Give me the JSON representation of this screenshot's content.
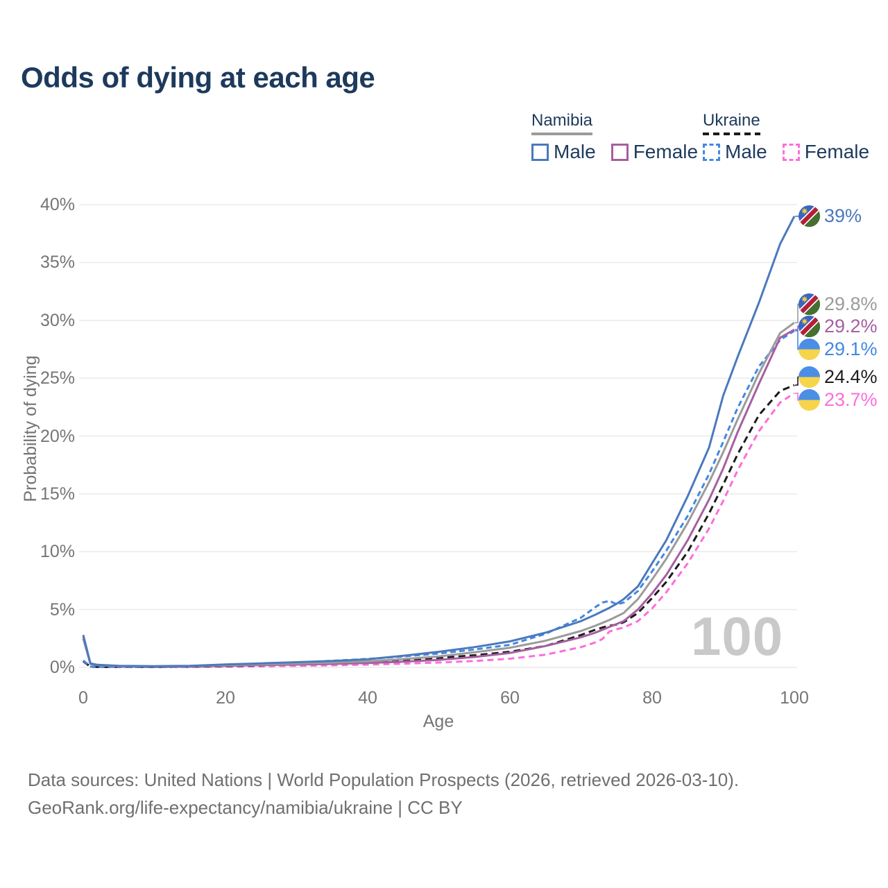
{
  "title": "Odds of dying at each age",
  "legend": {
    "groups": [
      {
        "name": "Namibia",
        "line_style": "solid",
        "line_color": "#9b9b9b",
        "items": [
          {
            "label": "Male",
            "color": "#4b79bc",
            "dashed": false
          },
          {
            "label": "Female",
            "color": "#a55fa0",
            "dashed": false
          }
        ]
      },
      {
        "name": "Ukraine",
        "line_style": "dashed",
        "line_color": "#1b1b1b",
        "items": [
          {
            "label": "Male",
            "color": "#4387e3",
            "dashed": true
          },
          {
            "label": "Female",
            "color": "#fc6eda",
            "dashed": true
          }
        ]
      }
    ]
  },
  "footer": {
    "line1": "Data sources: United Nations | World Population Prospects (2026, retrieved 2026-03-10).",
    "line2": "GeoRank.org/life-expectancy/namibia/ukraine | CC BY"
  },
  "chart_data": {
    "type": "line",
    "title": "Odds of dying at each age",
    "xlabel": "Age",
    "ylabel": "Probability of dying",
    "xlim": [
      0,
      100
    ],
    "ylim": [
      0,
      40
    ],
    "xticks": [
      0,
      20,
      40,
      60,
      80,
      100
    ],
    "ytick_values": [
      0,
      5,
      10,
      15,
      20,
      25,
      30,
      35,
      40
    ],
    "ytick_labels": [
      "0%",
      "5%",
      "10%",
      "15%",
      "20%",
      "25%",
      "30%",
      "35%",
      "40%"
    ],
    "grid": "horizontal",
    "grid_color": "#eaeaea",
    "legend_position": "top-right",
    "age_cursor": "100",
    "ages": [
      0,
      1,
      2,
      5,
      10,
      15,
      20,
      25,
      30,
      35,
      40,
      45,
      50,
      55,
      60,
      65,
      70,
      72,
      73,
      74,
      75,
      76,
      78,
      80,
      82,
      85,
      88,
      90,
      92,
      95,
      98,
      100
    ],
    "series": [
      {
        "id": "namibia-male",
        "name": "Namibia male",
        "country": "Namibia",
        "sex": "Male",
        "color": "#4b79bc",
        "dash": null,
        "flag": "namibia",
        "end_label": "39%",
        "label_color": "#4b79bc",
        "label_pct": 39.0,
        "y": [
          2.8,
          0.35,
          0.22,
          0.13,
          0.1,
          0.14,
          0.25,
          0.35,
          0.45,
          0.55,
          0.7,
          1.0,
          1.35,
          1.75,
          2.25,
          3.0,
          4.0,
          4.55,
          4.85,
          5.15,
          5.5,
          5.9,
          7.0,
          9.0,
          11.0,
          14.8,
          19.0,
          23.5,
          26.8,
          31.5,
          36.6,
          39.0
        ]
      },
      {
        "id": "namibia-all",
        "name": "Namibia both sexes",
        "country": "Namibia",
        "sex": "Both",
        "color": "#9b9b9b",
        "dash": null,
        "flag": "namibia",
        "end_label": "29.8%",
        "label_color": "#9b9b9b",
        "label_pct": 31.4,
        "y": [
          2.65,
          0.32,
          0.2,
          0.11,
          0.09,
          0.12,
          0.19,
          0.26,
          0.33,
          0.41,
          0.52,
          0.72,
          0.95,
          1.3,
          1.7,
          2.3,
          3.15,
          3.6,
          3.85,
          4.1,
          4.4,
          4.7,
          5.9,
          7.6,
          9.4,
          12.5,
          16.0,
          18.6,
          21.4,
          25.4,
          28.9,
          29.8
        ]
      },
      {
        "id": "namibia-female",
        "name": "Namibia female",
        "country": "Namibia",
        "sex": "Female",
        "color": "#a55fa0",
        "dash": null,
        "flag": "namibia",
        "end_label": "29.2%",
        "label_color": "#a55fa0",
        "label_pct": 29.5,
        "y": [
          2.5,
          0.3,
          0.18,
          0.1,
          0.08,
          0.1,
          0.14,
          0.19,
          0.24,
          0.3,
          0.38,
          0.5,
          0.65,
          0.9,
          1.25,
          1.85,
          2.6,
          3.0,
          3.25,
          3.5,
          3.75,
          4.0,
          5.0,
          6.4,
          8.0,
          11.0,
          14.5,
          17.2,
          20.3,
          24.5,
          28.5,
          29.2
        ]
      },
      {
        "id": "ukraine-male",
        "name": "Ukraine male",
        "country": "Ukraine",
        "sex": "Male",
        "color": "#4387e3",
        "dash": "8 5",
        "flag": "ukraine",
        "end_label": "29.1%",
        "label_color": "#4387e3",
        "label_pct": 27.5,
        "y": [
          0.6,
          0.07,
          0.05,
          0.04,
          0.04,
          0.08,
          0.16,
          0.28,
          0.42,
          0.57,
          0.73,
          0.95,
          1.2,
          1.55,
          1.95,
          2.9,
          4.3,
          5.2,
          5.6,
          5.75,
          5.45,
          5.6,
          6.6,
          8.3,
          10.1,
          13.1,
          16.7,
          19.5,
          22.4,
          26.0,
          28.3,
          29.1
        ]
      },
      {
        "id": "ukraine-all",
        "name": "Ukraine both sexes",
        "country": "Ukraine",
        "sex": "Both",
        "color": "#1b1b1b",
        "dash": "10 6",
        "flag": "ukraine",
        "end_label": "24.4%",
        "label_color": "#1e1e1e",
        "label_pct": 25.1,
        "y": [
          0.55,
          0.06,
          0.04,
          0.035,
          0.035,
          0.06,
          0.11,
          0.18,
          0.28,
          0.38,
          0.48,
          0.62,
          0.82,
          1.05,
          1.35,
          1.85,
          2.8,
          3.25,
          3.45,
          3.6,
          3.7,
          3.9,
          4.7,
          6.0,
          7.4,
          10.0,
          13.3,
          15.8,
          18.4,
          21.8,
          23.9,
          24.4
        ]
      },
      {
        "id": "ukraine-female",
        "name": "Ukraine female",
        "country": "Ukraine",
        "sex": "Female",
        "color": "#fc6eda",
        "dash": "9 6",
        "flag": "ukraine",
        "end_label": "23.7%",
        "label_color": "#fc6eda",
        "label_pct": 23.1,
        "y": [
          0.5,
          0.05,
          0.035,
          0.03,
          0.03,
          0.04,
          0.06,
          0.09,
          0.13,
          0.18,
          0.24,
          0.32,
          0.42,
          0.55,
          0.75,
          1.1,
          1.75,
          2.15,
          2.45,
          3.1,
          3.3,
          3.45,
          4.0,
          5.1,
          6.5,
          9.0,
          12.0,
          14.4,
          17.0,
          20.4,
          22.9,
          23.7
        ]
      }
    ]
  }
}
